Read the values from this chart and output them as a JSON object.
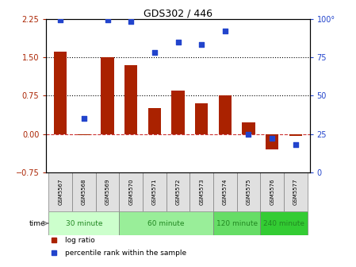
{
  "title": "GDS302 / 446",
  "samples": [
    "GSM5567",
    "GSM5568",
    "GSM5569",
    "GSM5570",
    "GSM5571",
    "GSM5572",
    "GSM5573",
    "GSM5574",
    "GSM5575",
    "GSM5576",
    "GSM5577"
  ],
  "log_ratio": [
    1.6,
    -0.02,
    1.5,
    1.35,
    0.5,
    0.85,
    0.6,
    0.75,
    0.22,
    -0.3,
    -0.03
  ],
  "percentile": [
    99,
    35,
    99,
    98,
    78,
    85,
    83,
    92,
    25,
    22,
    18
  ],
  "ylim_left": [
    -0.75,
    2.25
  ],
  "ylim_right": [
    0,
    100
  ],
  "yticks_left": [
    -0.75,
    0,
    0.75,
    1.5,
    2.25
  ],
  "yticks_right": [
    0,
    25,
    50,
    75,
    100
  ],
  "hlines": [
    0.75,
    1.5
  ],
  "bar_color": "#aa2200",
  "dot_color": "#2244cc",
  "zero_line_color": "#cc3333",
  "groups": [
    {
      "label": "30 minute",
      "start": 0,
      "end": 3,
      "color": "#ccffcc"
    },
    {
      "label": "60 minute",
      "start": 3,
      "end": 7,
      "color": "#99ee99"
    },
    {
      "label": "120 minute",
      "start": 7,
      "end": 9,
      "color": "#66dd66"
    },
    {
      "label": "240 minute",
      "start": 9,
      "end": 11,
      "color": "#33cc33"
    }
  ],
  "time_label": "time",
  "legend_items": [
    {
      "label": "log ratio",
      "color": "#aa2200"
    },
    {
      "label": "percentile rank within the sample",
      "color": "#2244cc"
    }
  ]
}
